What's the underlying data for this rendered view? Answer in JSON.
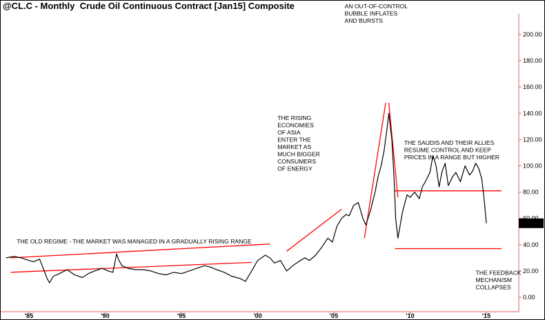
{
  "header": {
    "title": "@CL.C - Monthly  Crude Oil Continuous Contract [Jan15] Composite"
  },
  "chart_data": {
    "type": "line",
    "title": "@CL.C - Monthly  Crude Oil Continuous Contract [Jan15] Composite",
    "xlabel": "",
    "ylabel": "",
    "ylim": [
      -10,
      225
    ],
    "xlim": [
      1983.5,
      2016.2
    ],
    "y_ticks": [
      "200.00",
      "180.00",
      "160.00",
      "140.00",
      "120.00",
      "100.00",
      "80.00",
      "60.00",
      "40.00",
      "20.00",
      "0.00"
    ],
    "y_tick_values": [
      200,
      180,
      160,
      140,
      120,
      100,
      80,
      60,
      40,
      20,
      0
    ],
    "x_ticks": [
      "'85",
      "'90",
      "'95",
      "'00",
      "'05",
      "'10",
      "'15"
    ],
    "x_tick_values": [
      1985,
      1990,
      1995,
      2000,
      2005,
      2010,
      2015
    ],
    "grid": false,
    "last_value_label": "56.30",
    "colors": {
      "price_line": "#000000",
      "trend_lines": "#ff0000",
      "axis": "#e06060",
      "last_value_box": "#000000",
      "last_value_text": "#ffffff"
    },
    "series": [
      {
        "x": [
          1983.5,
          1984.0,
          1984.5,
          1985.0,
          1985.3,
          1985.7,
          1986.0,
          1986.2,
          1986.35,
          1986.6,
          1987.0,
          1987.5,
          1988.0,
          1988.5,
          1988.9,
          1989.3,
          1989.8,
          1990.2,
          1990.5,
          1990.75,
          1990.9,
          1991.1,
          1991.5,
          1992.0,
          1992.5,
          1993.0,
          1993.5,
          1994.0,
          1994.5,
          1995.0,
          1995.5,
          1996.0,
          1996.5,
          1996.9,
          1997.3,
          1997.8,
          1998.3,
          1998.9,
          1999.2,
          1999.6,
          2000.0,
          2000.5,
          2000.8,
          2001.1,
          2001.5,
          2001.9,
          2002.3,
          2002.8,
          2003.1,
          2003.4,
          2003.8,
          2004.2,
          2004.6,
          2004.9,
          2005.2,
          2005.5,
          2005.8,
          2006.0,
          2006.3,
          2006.6,
          2006.9,
          2007.1,
          2007.4,
          2007.7,
          2007.9,
          2008.1,
          2008.3,
          2008.5,
          2008.6,
          2008.8,
          2008.95,
          2009.05,
          2009.2,
          2009.5,
          2009.8,
          2010.0,
          2010.3,
          2010.6,
          2010.8,
          2011.0,
          2011.3,
          2011.5,
          2011.7,
          2011.9,
          2012.1,
          2012.3,
          2012.5,
          2012.8,
          2013.0,
          2013.3,
          2013.6,
          2013.9,
          2014.1,
          2014.3,
          2014.5,
          2014.7,
          2014.85,
          2015.0
        ],
        "values": [
          30,
          31,
          30,
          28,
          27,
          29,
          20,
          14,
          11,
          16,
          18,
          21,
          17,
          15,
          18,
          20,
          22,
          20,
          19,
          33,
          28,
          24,
          22,
          21,
          21,
          20,
          18,
          17,
          19,
          18,
          20,
          22,
          24,
          23,
          21,
          19,
          16,
          14,
          12,
          20,
          28,
          32,
          30,
          26,
          28,
          20,
          24,
          28,
          30,
          28,
          32,
          38,
          45,
          42,
          54,
          60,
          63,
          62,
          70,
          72,
          60,
          55,
          66,
          80,
          92,
          100,
          112,
          130,
          140,
          120,
          90,
          60,
          45,
          65,
          78,
          76,
          80,
          75,
          84,
          88,
          95,
          108,
          100,
          84,
          96,
          102,
          85,
          92,
          95,
          88,
          100,
          93,
          96,
          102,
          98,
          90,
          75,
          56.3
        ]
      }
    ],
    "trend_lines": [
      {
        "from": [
          1983.8,
          19.0
        ],
        "to": [
          1999.6,
          26.5
        ]
      },
      {
        "from": [
          1983.8,
          30.0
        ],
        "to": [
          2000.8,
          40.5
        ]
      },
      {
        "from": [
          2001.9,
          35.0
        ],
        "to": [
          2005.5,
          67.0
        ]
      },
      {
        "from": [
          2007.0,
          45.0
        ],
        "to": [
          2008.4,
          148.0
        ]
      },
      {
        "from": [
          2008.6,
          148.0
        ],
        "to": [
          2009.2,
          76.0
        ]
      },
      {
        "from": [
          2009.0,
          81.0
        ],
        "to": [
          2016.0,
          81.0
        ]
      },
      {
        "from": [
          2009.0,
          37.0
        ],
        "to": [
          2016.0,
          37.0
        ]
      }
    ],
    "annotations": [
      {
        "lines": [
          "THE OLD REGIME - THE MARKET WAS MANAGED IN A GRADUALLY RISING RANGE"
        ],
        "anchor": [
          1984.2,
          41.0
        ]
      },
      {
        "lines": [
          "THE RISING",
          "ECONOMIES",
          "OF ASIA",
          "ENTER THE",
          "MARKET AS",
          "MUCH BIGGER",
          "CONSUMERS",
          "OF ENERGY"
        ],
        "anchor": [
          2001.3,
          135.0
        ]
      },
      {
        "lines": [
          "AN OUT-OF-CONTROL",
          "BUBBLE INFLATES",
          "AND BURSTS"
        ],
        "anchor": [
          2005.7,
          220.0
        ]
      },
      {
        "lines": [
          "THE SAUDIS AND THEIR ALLIES",
          "RESUME CONTROL AND KEEP",
          "PRICES IN A RANGE BUT HIGHER"
        ],
        "anchor": [
          2009.6,
          116.0
        ]
      },
      {
        "lines": [
          "THE FEEDBACK",
          "MECHANISM",
          "COLLAPSES"
        ],
        "anchor": [
          2014.3,
          17.0
        ]
      }
    ]
  }
}
